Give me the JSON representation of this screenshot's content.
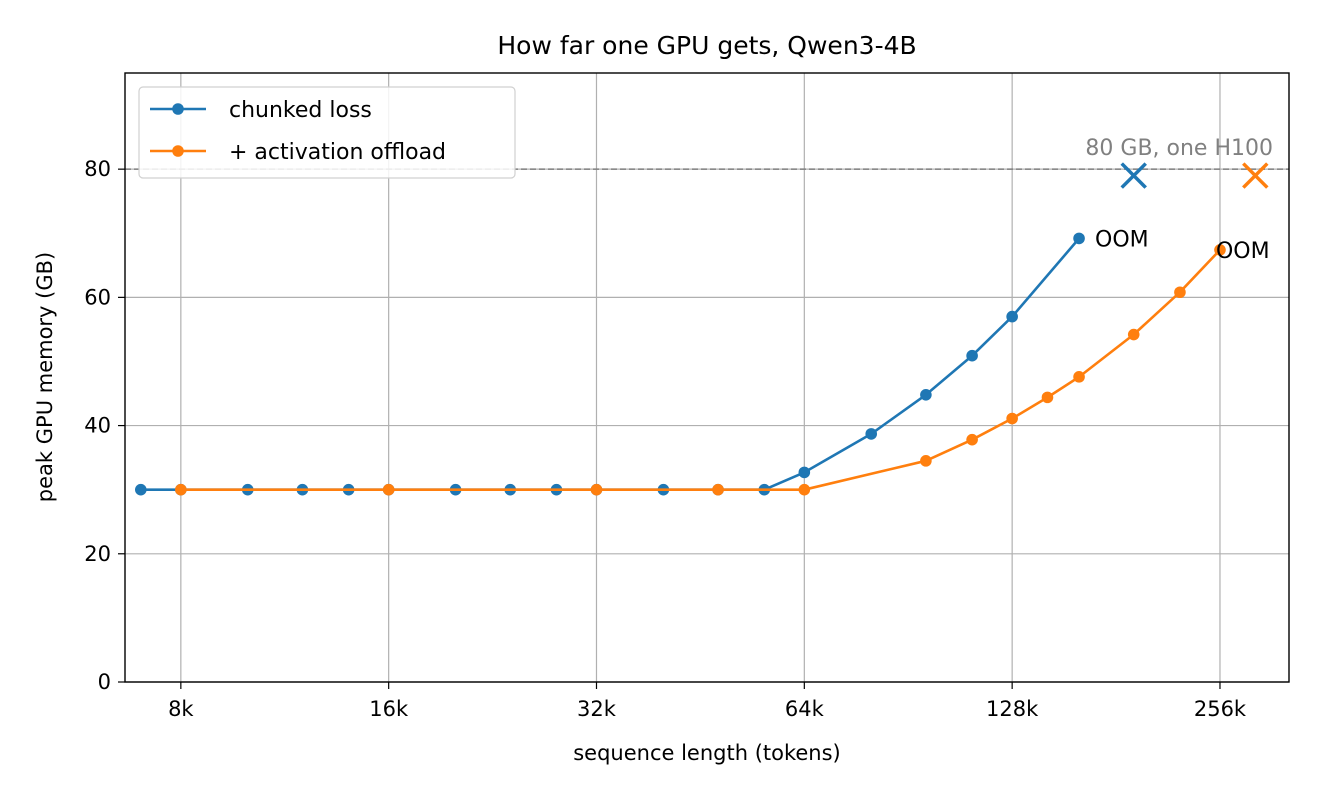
{
  "chart_data": {
    "type": "line",
    "title": "How far one GPU gets, Qwen3-4B",
    "xlabel": "sequence length (tokens)",
    "ylabel": "peak GPU memory (GB)",
    "x_scale": "log2",
    "xlim": [
      6800,
      330000
    ],
    "ylim": [
      0,
      95
    ],
    "x_ticks": [
      {
        "value": 8192,
        "label": "8k"
      },
      {
        "value": 16384,
        "label": "16k"
      },
      {
        "value": 32768,
        "label": "32k"
      },
      {
        "value": 65536,
        "label": "64k"
      },
      {
        "value": 131072,
        "label": "128k"
      },
      {
        "value": 262144,
        "label": "256k"
      }
    ],
    "y_ticks": [
      {
        "value": 0,
        "label": "0"
      },
      {
        "value": 20,
        "label": "20"
      },
      {
        "value": 40,
        "label": "40"
      },
      {
        "value": 60,
        "label": "60"
      },
      {
        "value": 80,
        "label": "80"
      }
    ],
    "grid": true,
    "legend_position": "upper-left",
    "series": [
      {
        "name": "chunked loss",
        "color": "#1f77b4",
        "x": [
          7168,
          8192,
          10240,
          12288,
          14336,
          16384,
          20480,
          24576,
          28672,
          32768,
          40960,
          49152,
          57344,
          65536,
          81920,
          98304,
          114688,
          131072,
          163840
        ],
        "y": [
          30.0,
          30.0,
          30.0,
          30.0,
          30.0,
          30.0,
          30.0,
          30.0,
          30.0,
          30.0,
          30.0,
          30.0,
          30.0,
          32.7,
          38.7,
          44.8,
          50.9,
          57.0,
          69.2
        ],
        "oom": {
          "x": 196608,
          "y": 79,
          "label": "OOM"
        }
      },
      {
        "name": "+ activation offload",
        "color": "#ff7f0e",
        "x": [
          8192,
          16384,
          32768,
          49152,
          65536,
          98304,
          114688,
          131072,
          147456,
          163840,
          196608,
          229376,
          262144
        ],
        "y": [
          30.0,
          30.0,
          30.0,
          30.0,
          30.0,
          34.5,
          37.8,
          41.1,
          44.4,
          47.6,
          54.2,
          60.8,
          67.4
        ],
        "oom": {
          "x": 294912,
          "y": 79,
          "label": "OOM"
        }
      }
    ],
    "reference_line": {
      "y": 80,
      "label": "80 GB, one H100",
      "color": "#808080"
    }
  }
}
